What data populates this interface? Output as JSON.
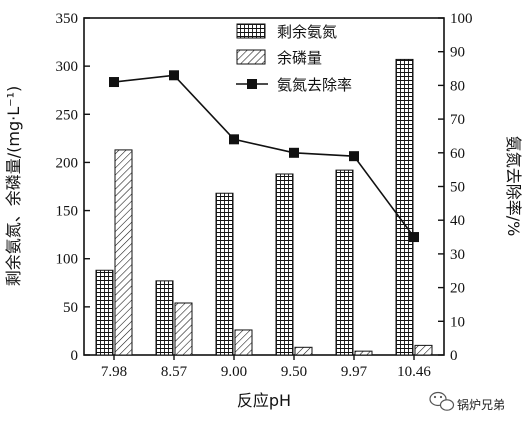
{
  "chart_data": {
    "type": "bar",
    "categories": [
      "7.98",
      "8.57",
      "9.00",
      "9.50",
      "9.97",
      "10.46"
    ],
    "xlabel": "反应pH",
    "ylabel_left": "剩余氨氮、余磷量/(mg·L⁻¹)",
    "ylabel_right": "氨氮去除率/%",
    "ylim_left": [
      0,
      350
    ],
    "ylim_right": [
      0,
      100
    ],
    "yticks_left": [
      "0",
      "50",
      "100",
      "150",
      "200",
      "250",
      "300",
      "350"
    ],
    "yticks_right": [
      "0",
      "10",
      "20",
      "30",
      "40",
      "50",
      "60",
      "70",
      "80",
      "90",
      "100"
    ],
    "grid": false,
    "legend_position": "top-right",
    "series": [
      {
        "name": "剩余氨氮",
        "kind": "bar",
        "axis": "left",
        "pattern": "grid",
        "values": [
          88,
          77,
          168,
          188,
          192,
          307
        ]
      },
      {
        "name": "余磷量",
        "kind": "bar",
        "axis": "left",
        "pattern": "diagonal",
        "values": [
          213,
          54,
          26,
          8,
          4,
          10
        ]
      },
      {
        "name": "氨氮去除率",
        "kind": "line",
        "axis": "right",
        "marker": "square",
        "values": [
          81,
          83,
          64,
          60,
          59,
          35
        ]
      }
    ],
    "colors": {
      "ink": "#111111",
      "fill": "#ffffff"
    }
  },
  "watermark": {
    "text": "锅炉兄弟",
    "icon": "wechat-logo-icon"
  }
}
